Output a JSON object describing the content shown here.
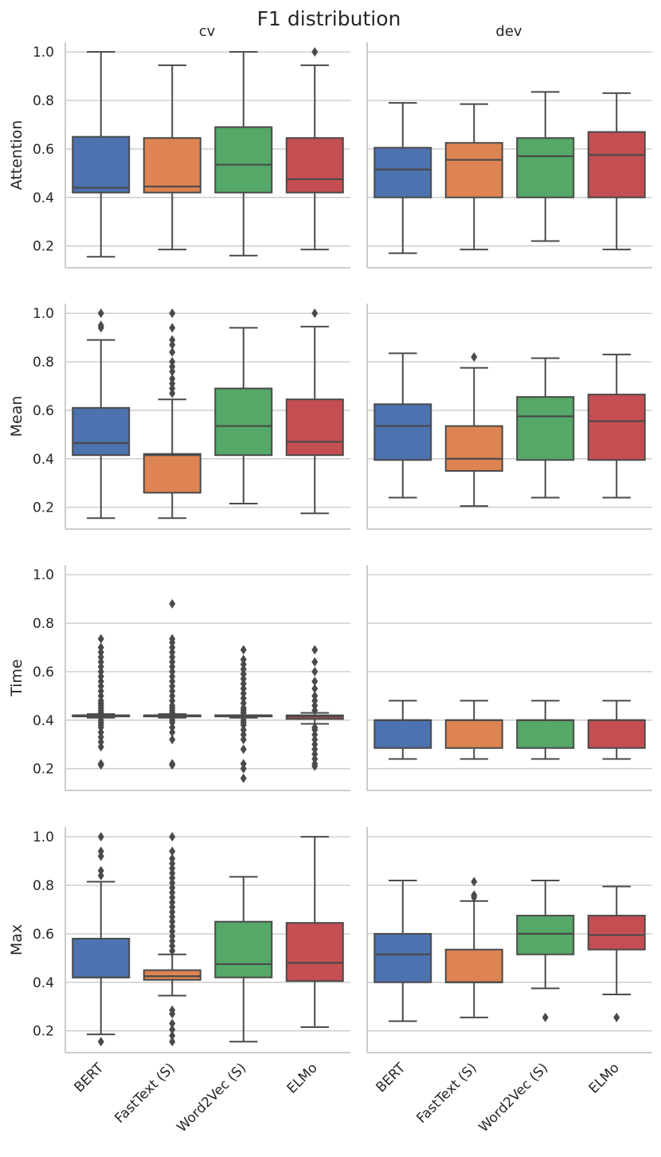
{
  "chart_data": {
    "type": "boxplot",
    "title": "F1 distribution",
    "columns": [
      "cv",
      "dev"
    ],
    "rows": [
      "Attention",
      "Mean",
      "Time",
      "Max"
    ],
    "categories": [
      "BERT",
      "FastText (S)",
      "Word2Vec (S)",
      "ELMo"
    ],
    "colors": [
      "#4c72b0",
      "#dd8452",
      "#55a868",
      "#c44e52"
    ],
    "yticks": [
      0.2,
      0.4,
      0.6,
      0.8,
      1.0
    ],
    "ytick_labels": [
      "0.2",
      "0.4",
      "0.6",
      "0.8",
      "1.0"
    ],
    "ylim": [
      0.11,
      1.04
    ],
    "panels": [
      {
        "row": "Attention",
        "col": "cv",
        "boxes": [
          {
            "whislo": 0.155,
            "q1": 0.42,
            "med": 0.44,
            "q3": 0.65,
            "whishi": 1.0,
            "fliers": []
          },
          {
            "whislo": 0.185,
            "q1": 0.42,
            "med": 0.445,
            "q3": 0.645,
            "whishi": 0.945,
            "fliers": []
          },
          {
            "whislo": 0.16,
            "q1": 0.42,
            "med": 0.535,
            "q3": 0.69,
            "whishi": 1.0,
            "fliers": []
          },
          {
            "whislo": 0.185,
            "q1": 0.42,
            "med": 0.475,
            "q3": 0.645,
            "whishi": 0.945,
            "fliers": [
              1.0
            ]
          }
        ]
      },
      {
        "row": "Attention",
        "col": "dev",
        "boxes": [
          {
            "whislo": 0.17,
            "q1": 0.4,
            "med": 0.515,
            "q3": 0.605,
            "whishi": 0.79,
            "fliers": []
          },
          {
            "whislo": 0.185,
            "q1": 0.4,
            "med": 0.555,
            "q3": 0.625,
            "whishi": 0.785,
            "fliers": []
          },
          {
            "whislo": 0.22,
            "q1": 0.4,
            "med": 0.57,
            "q3": 0.645,
            "whishi": 0.835,
            "fliers": []
          },
          {
            "whislo": 0.185,
            "q1": 0.4,
            "med": 0.575,
            "q3": 0.67,
            "whishi": 0.83,
            "fliers": []
          }
        ]
      },
      {
        "row": "Mean",
        "col": "cv",
        "boxes": [
          {
            "whislo": 0.155,
            "q1": 0.415,
            "med": 0.465,
            "q3": 0.61,
            "whishi": 0.89,
            "fliers": [
              0.94,
              0.95,
              1.0
            ]
          },
          {
            "whislo": 0.155,
            "q1": 0.26,
            "med": 0.415,
            "q3": 0.42,
            "whishi": 0.645,
            "fliers": [
              0.67,
              0.69,
              0.71,
              0.73,
              0.76,
              0.78,
              0.8,
              0.84,
              0.87,
              0.89,
              0.94,
              1.0
            ]
          },
          {
            "whislo": 0.215,
            "q1": 0.415,
            "med": 0.535,
            "q3": 0.69,
            "whishi": 0.94,
            "fliers": []
          },
          {
            "whislo": 0.175,
            "q1": 0.415,
            "med": 0.47,
            "q3": 0.645,
            "whishi": 0.945,
            "fliers": [
              1.0
            ]
          }
        ]
      },
      {
        "row": "Mean",
        "col": "dev",
        "boxes": [
          {
            "whislo": 0.24,
            "q1": 0.395,
            "med": 0.535,
            "q3": 0.625,
            "whishi": 0.835,
            "fliers": []
          },
          {
            "whislo": 0.205,
            "q1": 0.35,
            "med": 0.4,
            "q3": 0.535,
            "whishi": 0.775,
            "fliers": [
              0.82
            ]
          },
          {
            "whislo": 0.24,
            "q1": 0.395,
            "med": 0.575,
            "q3": 0.655,
            "whishi": 0.815,
            "fliers": []
          },
          {
            "whislo": 0.24,
            "q1": 0.395,
            "med": 0.555,
            "q3": 0.665,
            "whishi": 0.83,
            "fliers": []
          }
        ]
      },
      {
        "row": "Time",
        "col": "cv",
        "boxes": [
          {
            "whislo": 0.41,
            "q1": 0.415,
            "med": 0.42,
            "q3": 0.42,
            "whishi": 0.425,
            "fliers": [
              0.215,
              0.22,
              0.29,
              0.31,
              0.33,
              0.35,
              0.37,
              0.38,
              0.39,
              0.4,
              0.43,
              0.44,
              0.45,
              0.46,
              0.47,
              0.48,
              0.5,
              0.52,
              0.54,
              0.56,
              0.58,
              0.6,
              0.62,
              0.64,
              0.66,
              0.68,
              0.7,
              0.735
            ]
          },
          {
            "whislo": 0.41,
            "q1": 0.415,
            "med": 0.42,
            "q3": 0.42,
            "whishi": 0.425,
            "fliers": [
              0.215,
              0.22,
              0.32,
              0.35,
              0.37,
              0.39,
              0.4,
              0.43,
              0.44,
              0.45,
              0.46,
              0.48,
              0.5,
              0.52,
              0.54,
              0.56,
              0.58,
              0.6,
              0.62,
              0.64,
              0.66,
              0.68,
              0.7,
              0.72,
              0.735,
              0.88
            ]
          },
          {
            "whislo": 0.41,
            "q1": 0.415,
            "med": 0.42,
            "q3": 0.42,
            "whishi": 0.42,
            "fliers": [
              0.16,
              0.2,
              0.22,
              0.28,
              0.32,
              0.34,
              0.36,
              0.38,
              0.39,
              0.4,
              0.43,
              0.44,
              0.45,
              0.47,
              0.49,
              0.51,
              0.53,
              0.55,
              0.57,
              0.59,
              0.61,
              0.63,
              0.65,
              0.69
            ]
          },
          {
            "whislo": 0.385,
            "q1": 0.405,
            "med": 0.415,
            "q3": 0.42,
            "whishi": 0.43,
            "fliers": [
              0.21,
              0.22,
              0.24,
              0.26,
              0.28,
              0.3,
              0.32,
              0.34,
              0.36,
              0.37,
              0.44,
              0.46,
              0.48,
              0.5,
              0.53,
              0.56,
              0.6,
              0.64,
              0.69
            ]
          }
        ]
      },
      {
        "row": "Time",
        "col": "dev",
        "boxes": [
          {
            "whislo": 0.24,
            "q1": 0.285,
            "med": 0.4,
            "q3": 0.4,
            "whishi": 0.48,
            "fliers": []
          },
          {
            "whislo": 0.24,
            "q1": 0.285,
            "med": 0.4,
            "q3": 0.4,
            "whishi": 0.48,
            "fliers": []
          },
          {
            "whislo": 0.24,
            "q1": 0.285,
            "med": 0.4,
            "q3": 0.4,
            "whishi": 0.48,
            "fliers": []
          },
          {
            "whislo": 0.24,
            "q1": 0.285,
            "med": 0.4,
            "q3": 0.4,
            "whishi": 0.48,
            "fliers": []
          }
        ]
      },
      {
        "row": "Max",
        "col": "cv",
        "boxes": [
          {
            "whislo": 0.185,
            "q1": 0.42,
            "med": 0.42,
            "q3": 0.58,
            "whishi": 0.815,
            "fliers": [
              0.155,
              0.84,
              0.86,
              0.92,
              0.94,
              1.0
            ]
          },
          {
            "whislo": 0.345,
            "q1": 0.41,
            "med": 0.425,
            "q3": 0.45,
            "whishi": 0.515,
            "fliers": [
              0.155,
              0.18,
              0.205,
              0.23,
              0.27,
              0.285,
              0.53,
              0.55,
              0.57,
              0.59,
              0.61,
              0.63,
              0.65,
              0.67,
              0.69,
              0.71,
              0.73,
              0.75,
              0.77,
              0.79,
              0.81,
              0.83,
              0.85,
              0.87,
              0.89,
              0.91,
              0.94,
              1.0
            ]
          },
          {
            "whislo": 0.155,
            "q1": 0.42,
            "med": 0.475,
            "q3": 0.65,
            "whishi": 0.835,
            "fliers": []
          },
          {
            "whislo": 0.215,
            "q1": 0.405,
            "med": 0.48,
            "q3": 0.645,
            "whishi": 1.0,
            "fliers": []
          }
        ]
      },
      {
        "row": "Max",
        "col": "dev",
        "boxes": [
          {
            "whislo": 0.24,
            "q1": 0.4,
            "med": 0.515,
            "q3": 0.6,
            "whishi": 0.82,
            "fliers": []
          },
          {
            "whislo": 0.255,
            "q1": 0.4,
            "med": 0.4,
            "q3": 0.535,
            "whishi": 0.735,
            "fliers": [
              0.75,
              0.76,
              0.815
            ]
          },
          {
            "whislo": 0.375,
            "q1": 0.515,
            "med": 0.6,
            "q3": 0.675,
            "whishi": 0.82,
            "fliers": [
              0.255
            ]
          },
          {
            "whislo": 0.35,
            "q1": 0.535,
            "med": 0.595,
            "q3": 0.675,
            "whishi": 0.795,
            "fliers": [
              0.255
            ]
          }
        ]
      }
    ]
  }
}
